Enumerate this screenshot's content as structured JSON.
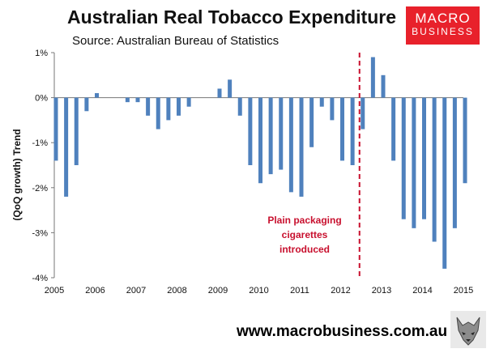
{
  "header": {
    "title": "Australian Real Tobacco Expenditure",
    "subtitle": "Source: Australian Bureau of Statistics"
  },
  "logo": {
    "line1": "MACRO",
    "line2": "BUSINESS"
  },
  "footer": {
    "website": "www.macrobusiness.com.au"
  },
  "colors": {
    "bar": "#4f81bd",
    "annotation": "#c8102e",
    "logo_bg": "#e8212b"
  },
  "chart_data": {
    "type": "bar",
    "title": "Australian Real Tobacco Expenditure",
    "xlabel": "",
    "ylabel": "(QoQ growth) Trend",
    "ylim": [
      -4,
      1
    ],
    "y_ticks": [
      "1%",
      "0%",
      "-1%",
      "-2%",
      "-3%",
      "-4%"
    ],
    "y_tick_values": [
      1,
      0,
      -1,
      -2,
      -3,
      -4
    ],
    "x_tick_labels": [
      "2005",
      "2006",
      "2007",
      "2008",
      "2009",
      "2010",
      "2011",
      "2012",
      "2013",
      "2014",
      "2015"
    ],
    "x_start": 2005,
    "x_end": 2015,
    "series": [
      {
        "name": "Real tobacco expenditure (QoQ growth, trend)",
        "unit": "%",
        "start_year": 2005,
        "values": [
          -1.4,
          -2.2,
          -1.5,
          -0.3,
          0.1,
          0.0,
          0.0,
          -0.1,
          -0.1,
          -0.4,
          -0.7,
          -0.5,
          -0.4,
          -0.2,
          0.0,
          0.0,
          0.2,
          0.4,
          -0.4,
          -1.5,
          -1.9,
          -1.7,
          -1.6,
          -2.1,
          -2.2,
          -1.1,
          -0.2,
          -0.5,
          -1.4,
          -1.5,
          -0.7,
          0.9,
          0.5,
          -1.4,
          -2.7,
          -2.9,
          -2.7,
          -3.2,
          -3.8,
          -2.9,
          -1.9
        ]
      }
    ],
    "annotations": [
      {
        "text_lines": [
          "Plain packaging",
          "cigarettes",
          "introduced"
        ],
        "x_year": 2012.5,
        "style": "dashed-vertical-line"
      }
    ]
  }
}
